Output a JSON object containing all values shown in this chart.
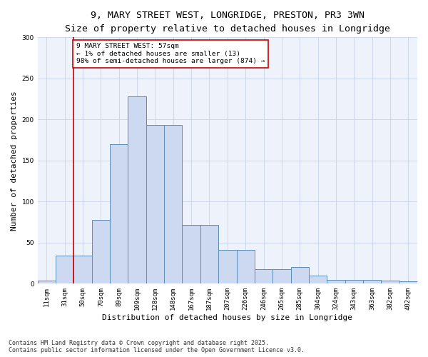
{
  "title_line1": "9, MARY STREET WEST, LONGRIDGE, PRESTON, PR3 3WN",
  "title_line2": "Size of property relative to detached houses in Longridge",
  "xlabel": "Distribution of detached houses by size in Longridge",
  "ylabel": "Number of detached properties",
  "categories": [
    "11sqm",
    "31sqm",
    "50sqm",
    "70sqm",
    "89sqm",
    "109sqm",
    "128sqm",
    "148sqm",
    "167sqm",
    "187sqm",
    "207sqm",
    "226sqm",
    "246sqm",
    "265sqm",
    "285sqm",
    "304sqm",
    "324sqm",
    "343sqm",
    "363sqm",
    "382sqm",
    "402sqm"
  ],
  "values": [
    4,
    34,
    34,
    78,
    170,
    228,
    193,
    193,
    72,
    72,
    41,
    41,
    18,
    18,
    20,
    10,
    5,
    5,
    5,
    4,
    3
  ],
  "bar_color": "#ccd9f0",
  "bar_edge_color": "#5b8db8",
  "vline_x": 1.5,
  "vline_color": "#cc0000",
  "annotation_text": "9 MARY STREET WEST: 57sqm\n← 1% of detached houses are smaller (13)\n98% of semi-detached houses are larger (874) →",
  "annotation_box_color": "#ffffff",
  "annotation_box_edge": "#cc0000",
  "grid_color": "#c8d4e8",
  "background_color": "#eef2fa",
  "footer_line1": "Contains HM Land Registry data © Crown copyright and database right 2025.",
  "footer_line2": "Contains public sector information licensed under the Open Government Licence v3.0.",
  "ylim": [
    0,
    300
  ],
  "title_fontsize": 9.5,
  "subtitle_fontsize": 8.5,
  "axis_fontsize": 8,
  "tick_fontsize": 6.5,
  "footer_fontsize": 6,
  "ann_fontsize": 6.8
}
